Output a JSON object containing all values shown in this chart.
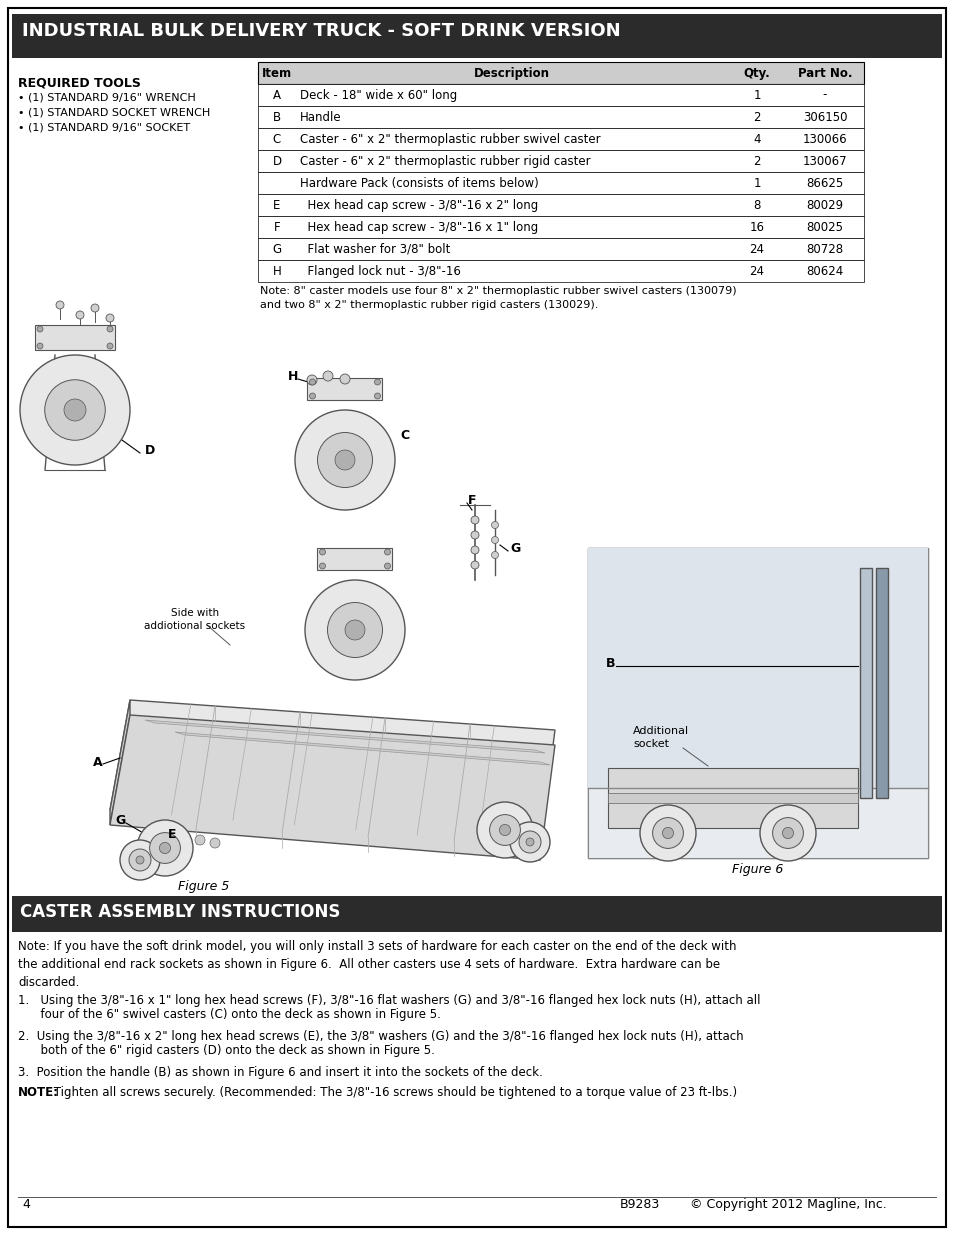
{
  "title": "INDUSTRIAL BULK DELIVERY TRUCK - SOFT DRINK VERSION",
  "title_bg": "#2b2b2b",
  "title_color": "#ffffff",
  "table_header": [
    "Item",
    "Description",
    "Qty.",
    "Part No."
  ],
  "table_rows": [
    [
      "A",
      "Deck - 18\" wide x 60\" long",
      "1",
      "-"
    ],
    [
      "B",
      "Handle",
      "2",
      "306150"
    ],
    [
      "C",
      "Caster - 6\" x 2\" thermoplastic rubber swivel caster",
      "4",
      "130066"
    ],
    [
      "D",
      "Caster - 6\" x 2\" thermoplastic rubber rigid caster",
      "2",
      "130067"
    ],
    [
      "",
      "Hardware Pack (consists of items below)",
      "1",
      "86625"
    ],
    [
      "E",
      "  Hex head cap screw - 3/8\"-16 x 2\" long",
      "8",
      "80029"
    ],
    [
      "F",
      "  Hex head cap screw - 3/8\"-16 x 1\" long",
      "16",
      "80025"
    ],
    [
      "G",
      "  Flat washer for 3/8\" bolt",
      "24",
      "80728"
    ],
    [
      "H",
      "  Flanged lock nut - 3/8\"-16",
      "24",
      "80624"
    ]
  ],
  "table_note": "Note: 8\" caster models use four 8\" x 2\" thermoplastic rubber swivel casters (130079)\nand two 8\" x 2\" thermoplastic rubber rigid casters (130029).",
  "required_tools_title": "REQUIRED TOOLS",
  "required_tools": [
    "• (1) STANDARD 9/16\" WRENCH",
    "• (1) STANDARD SOCKET WRENCH",
    "• (1) STANDARD 9/16\" SOCKET"
  ],
  "section2_title": "CASTER ASSEMBLY INSTRUCTIONS",
  "section2_bg": "#2b2b2b",
  "section2_color": "#ffffff",
  "instructions_note": "Note: If you have the soft drink model, you will only install 3 sets of hardware for each caster on the end of the deck with\nthe additional end rack sockets as shown in Figure 6.  All other casters use 4 sets of hardware.  Extra hardware can be\ndiscarded.",
  "instr1": "1.   Using the 3/8\"-16 x 1\" long hex head screws (F), 3/8\"-16 flat washers (G) and 3/8\"-16 flanged hex lock nuts (H), attach all",
  "instr1b": "      four of the 6\" swivel casters (C) onto the deck as shown in Figure 5.",
  "instr2": "2.  Using the 3/8\"-16 x 2\" long hex head screws (E), the 3/8\" washers (G) and the 3/8\"-16 flanged hex lock nuts (H), attach",
  "instr2b": "      both of the 6\" rigid casters (D) onto the deck as shown in Figure 5.",
  "instr3": "3.  Position the handle (B) as shown in Figure 6 and insert it into the sockets of the deck.",
  "note_bold": "NOTE:",
  "note_text": " Tighten all screws securely. (Recommended: The 3/8\"-16 screws should be tightened to a torque value of 23 ft-lbs.)",
  "figure5_label": "Figure 5",
  "figure6_label": "Figure 6",
  "page_number": "4",
  "model_number": "B9283",
  "copyright": "© Copyright 2012 Magline, Inc.",
  "bg_color": "#ffffff",
  "table_header_bg": "#cccccc",
  "table_row_bg": "#ffffff",
  "table_border": "#555555"
}
